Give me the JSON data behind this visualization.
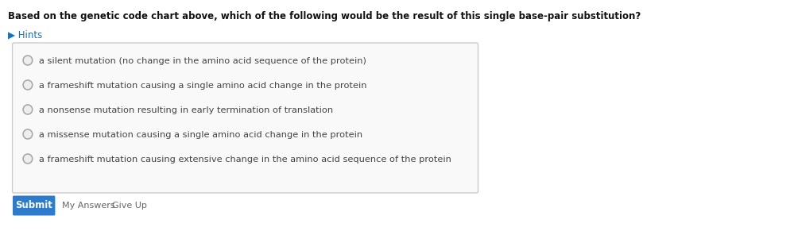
{
  "question": "Based on the genetic code chart above, which of the following would be the result of this single base-pair substitution?",
  "hints_text": "▶ Hints",
  "hints_color": "#1a6fc4",
  "options": [
    "a silent mutation (no change in the amino acid sequence of the protein)",
    "a frameshift mutation causing a single amino acid change in the protein",
    "a nonsense mutation resulting in early termination of translation",
    "a missense mutation causing a single amino acid change in the protein",
    "a frameshift mutation causing extensive change in the amino acid sequence of the protein"
  ],
  "submit_text": "Submit",
  "submit_bg": "#2e7bcc",
  "submit_text_color": "#ffffff",
  "myanswers_text": "My Answers",
  "giveup_text": "Give Up",
  "bg_color": "#ffffff",
  "box_border_color": "#cccccc",
  "radio_color": "#aaaaaa",
  "option_text_color": "#444444",
  "question_text_color": "#111111",
  "footer_text_color": "#666666",
  "question_fontsize": 8.5,
  "option_fontsize": 8.2,
  "hints_fontsize": 8.5
}
